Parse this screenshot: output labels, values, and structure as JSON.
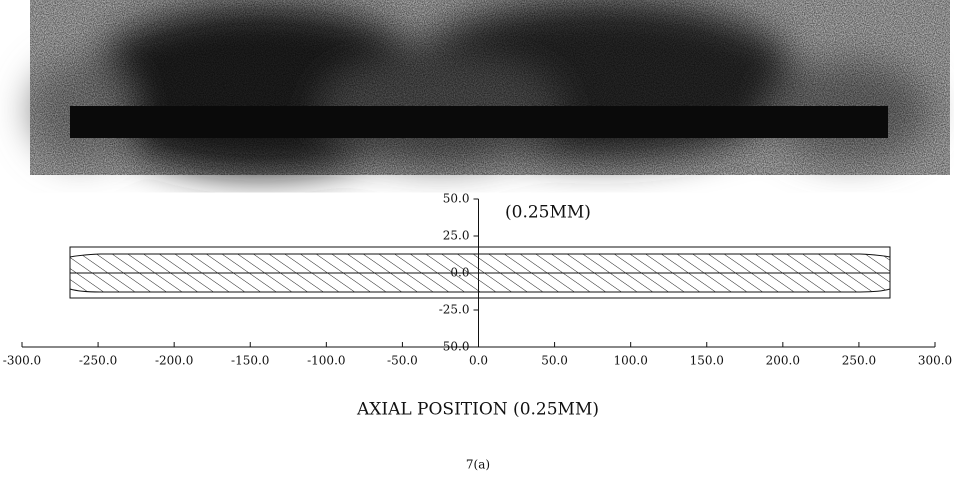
{
  "chart_data": {
    "type": "diagram",
    "annotation": "(0.25MM)",
    "xlabel": "AXIAL POSITION (0.25MM)",
    "caption": "7(a)",
    "xlim": [
      -300,
      300
    ],
    "ylim": [
      -50,
      50
    ],
    "xticks": [
      {
        "value": -300,
        "label": "-300.0"
      },
      {
        "value": -250,
        "label": "-250.0"
      },
      {
        "value": -200,
        "label": "-200.0"
      },
      {
        "value": -150,
        "label": "-150.0"
      },
      {
        "value": -100,
        "label": "-100.0"
      },
      {
        "value": -50,
        "label": "-50.0"
      },
      {
        "value": 0,
        "label": "0.0"
      },
      {
        "value": 50,
        "label": "50.0"
      },
      {
        "value": 100,
        "label": "100.0"
      },
      {
        "value": 150,
        "label": "150.0"
      },
      {
        "value": 200,
        "label": "200.0"
      },
      {
        "value": 250,
        "label": "250.0"
      },
      {
        "value": 300,
        "label": "300.0"
      }
    ],
    "yticks": [
      {
        "value": 50,
        "label": "50.0"
      },
      {
        "value": 25,
        "label": "25.0"
      },
      {
        "value": 0,
        "label": "0.0"
      },
      {
        "value": -25,
        "label": "-25.0"
      },
      {
        "value": -50,
        "label": "-50.0"
      }
    ]
  }
}
